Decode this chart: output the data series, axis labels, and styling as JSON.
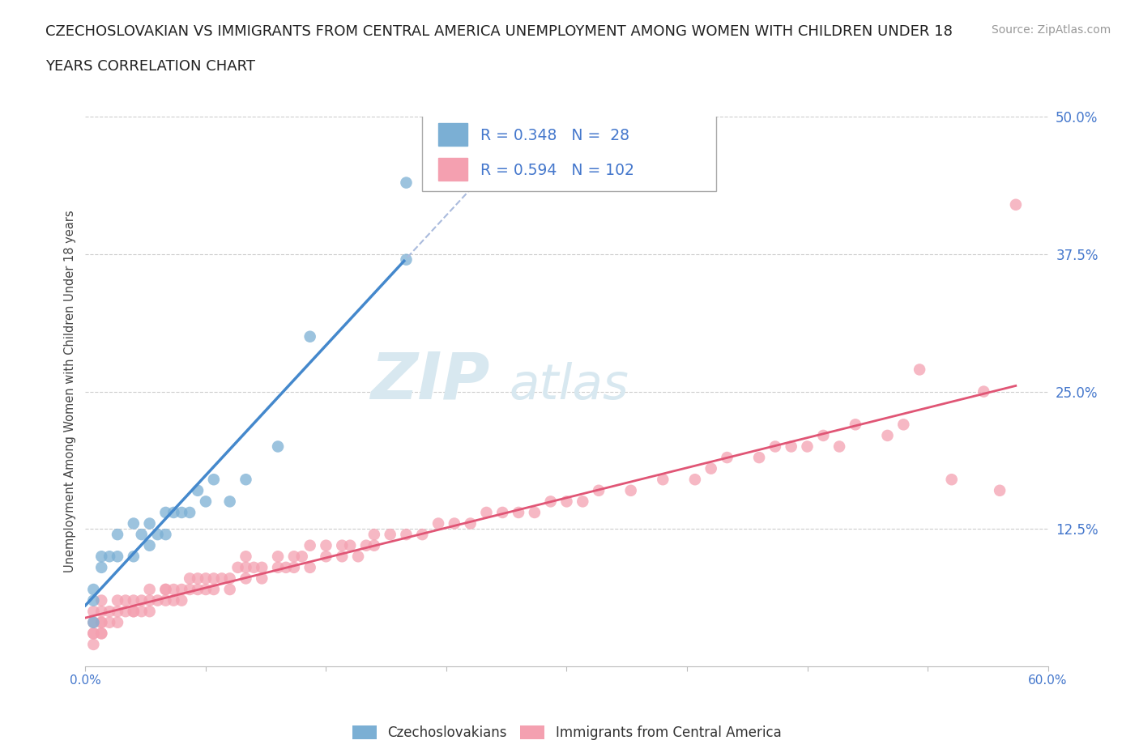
{
  "title_line1": "CZECHOSLOVAKIAN VS IMMIGRANTS FROM CENTRAL AMERICA UNEMPLOYMENT AMONG WOMEN WITH CHILDREN UNDER 18",
  "title_line2": "YEARS CORRELATION CHART",
  "source_text": "Source: ZipAtlas.com",
  "ylabel": "Unemployment Among Women with Children Under 18 years",
  "xlim": [
    0.0,
    0.6
  ],
  "ylim": [
    0.0,
    0.5
  ],
  "yticks": [
    0.0,
    0.125,
    0.25,
    0.375,
    0.5
  ],
  "ytick_labels": [
    "",
    "12.5%",
    "25.0%",
    "37.5%",
    "50.0%"
  ],
  "xticks": [
    0.0,
    0.075,
    0.15,
    0.225,
    0.3,
    0.375,
    0.45,
    0.525,
    0.6
  ],
  "xtick_labels": [
    "0.0%",
    "",
    "",
    "",
    "",
    "",
    "",
    "",
    "60.0%"
  ],
  "background_color": "#ffffff",
  "grid_color": "#cccccc",
  "watermark_zip": "ZIP",
  "watermark_atlas": "atlas",
  "series1_name": "Czechoslovakians",
  "series1_color": "#7bafd4",
  "series1_line_color": "#4488cc",
  "series1_R": 0.348,
  "series1_N": 28,
  "series2_name": "Immigrants from Central America",
  "series2_color": "#f4a0b0",
  "series2_line_color": "#e05575",
  "series2_R": 0.594,
  "series2_N": 102,
  "czecho_x": [
    0.005,
    0.005,
    0.005,
    0.01,
    0.01,
    0.015,
    0.02,
    0.02,
    0.03,
    0.03,
    0.035,
    0.04,
    0.04,
    0.045,
    0.05,
    0.05,
    0.055,
    0.06,
    0.065,
    0.07,
    0.075,
    0.08,
    0.09,
    0.1,
    0.12,
    0.14,
    0.2,
    0.2
  ],
  "czecho_y": [
    0.04,
    0.06,
    0.07,
    0.09,
    0.1,
    0.1,
    0.1,
    0.12,
    0.1,
    0.13,
    0.12,
    0.11,
    0.13,
    0.12,
    0.12,
    0.14,
    0.14,
    0.14,
    0.14,
    0.16,
    0.15,
    0.17,
    0.15,
    0.17,
    0.2,
    0.3,
    0.37,
    0.44
  ],
  "central_america_x": [
    0.005,
    0.005,
    0.005,
    0.005,
    0.005,
    0.01,
    0.01,
    0.01,
    0.01,
    0.01,
    0.01,
    0.015,
    0.015,
    0.02,
    0.02,
    0.02,
    0.025,
    0.025,
    0.03,
    0.03,
    0.03,
    0.035,
    0.035,
    0.04,
    0.04,
    0.04,
    0.045,
    0.05,
    0.05,
    0.05,
    0.055,
    0.055,
    0.06,
    0.06,
    0.065,
    0.065,
    0.07,
    0.07,
    0.075,
    0.075,
    0.08,
    0.08,
    0.085,
    0.09,
    0.09,
    0.095,
    0.1,
    0.1,
    0.1,
    0.105,
    0.11,
    0.11,
    0.12,
    0.12,
    0.125,
    0.13,
    0.13,
    0.135,
    0.14,
    0.14,
    0.15,
    0.15,
    0.16,
    0.16,
    0.165,
    0.17,
    0.175,
    0.18,
    0.18,
    0.19,
    0.2,
    0.21,
    0.22,
    0.23,
    0.24,
    0.25,
    0.26,
    0.27,
    0.28,
    0.29,
    0.3,
    0.31,
    0.32,
    0.34,
    0.36,
    0.38,
    0.39,
    0.4,
    0.42,
    0.43,
    0.44,
    0.45,
    0.46,
    0.47,
    0.48,
    0.5,
    0.51,
    0.52,
    0.54,
    0.56,
    0.57,
    0.58
  ],
  "central_america_y": [
    0.02,
    0.03,
    0.03,
    0.04,
    0.05,
    0.03,
    0.03,
    0.04,
    0.04,
    0.05,
    0.06,
    0.04,
    0.05,
    0.04,
    0.05,
    0.06,
    0.05,
    0.06,
    0.05,
    0.05,
    0.06,
    0.05,
    0.06,
    0.05,
    0.06,
    0.07,
    0.06,
    0.06,
    0.07,
    0.07,
    0.06,
    0.07,
    0.06,
    0.07,
    0.07,
    0.08,
    0.07,
    0.08,
    0.07,
    0.08,
    0.07,
    0.08,
    0.08,
    0.07,
    0.08,
    0.09,
    0.08,
    0.09,
    0.1,
    0.09,
    0.08,
    0.09,
    0.09,
    0.1,
    0.09,
    0.09,
    0.1,
    0.1,
    0.09,
    0.11,
    0.1,
    0.11,
    0.1,
    0.11,
    0.11,
    0.1,
    0.11,
    0.11,
    0.12,
    0.12,
    0.12,
    0.12,
    0.13,
    0.13,
    0.13,
    0.14,
    0.14,
    0.14,
    0.14,
    0.15,
    0.15,
    0.15,
    0.16,
    0.16,
    0.17,
    0.17,
    0.18,
    0.19,
    0.19,
    0.2,
    0.2,
    0.2,
    0.21,
    0.2,
    0.22,
    0.21,
    0.22,
    0.27,
    0.17,
    0.25,
    0.16,
    0.42
  ]
}
